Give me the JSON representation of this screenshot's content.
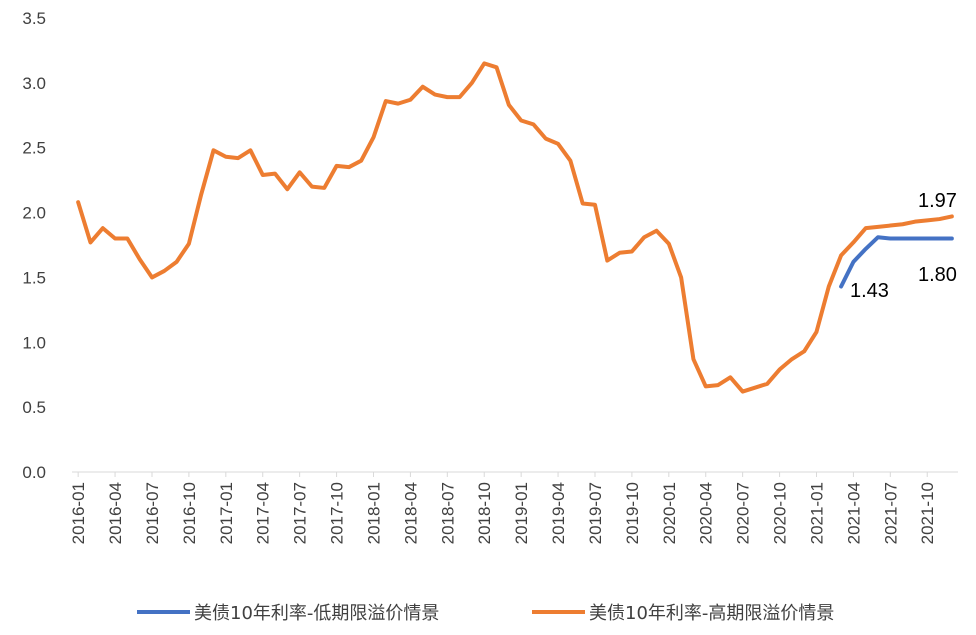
{
  "chart_data": {
    "type": "line",
    "title": "",
    "xlabel": "",
    "ylabel": "",
    "ylim": [
      0,
      3.5
    ],
    "yticks": [
      "0.0",
      "0.5",
      "1.0",
      "1.5",
      "2.0",
      "2.5",
      "3.0",
      "3.5"
    ],
    "grid": false,
    "legend_position": "bottom",
    "x": [
      "2016-01",
      "2016-02",
      "2016-03",
      "2016-04",
      "2016-05",
      "2016-06",
      "2016-07",
      "2016-08",
      "2016-09",
      "2016-10",
      "2016-11",
      "2016-12",
      "2017-01",
      "2017-02",
      "2017-03",
      "2017-04",
      "2017-05",
      "2017-06",
      "2017-07",
      "2017-08",
      "2017-09",
      "2017-10",
      "2017-11",
      "2017-12",
      "2018-01",
      "2018-02",
      "2018-03",
      "2018-04",
      "2018-05",
      "2018-06",
      "2018-07",
      "2018-08",
      "2018-09",
      "2018-10",
      "2018-11",
      "2018-12",
      "2019-01",
      "2019-02",
      "2019-03",
      "2019-04",
      "2019-05",
      "2019-06",
      "2019-07",
      "2019-08",
      "2019-09",
      "2019-10",
      "2019-11",
      "2019-12",
      "2020-01",
      "2020-02",
      "2020-03",
      "2020-04",
      "2020-05",
      "2020-06",
      "2020-07",
      "2020-08",
      "2020-09",
      "2020-10",
      "2020-11",
      "2020-12",
      "2021-01",
      "2021-02",
      "2021-03",
      "2021-04",
      "2021-05",
      "2021-06",
      "2021-07",
      "2021-08",
      "2021-09",
      "2021-10",
      "2021-11",
      "2021-12"
    ],
    "xtick_labels": [
      "2016-01",
      "2016-04",
      "2016-07",
      "2016-10",
      "2017-01",
      "2017-04",
      "2017-07",
      "2017-10",
      "2018-01",
      "2018-04",
      "2018-07",
      "2018-10",
      "2019-01",
      "2019-04",
      "2019-07",
      "2019-10",
      "2020-01",
      "2020-04",
      "2020-07",
      "2020-10",
      "2021-01",
      "2021-04",
      "2021-07",
      "2021-10"
    ],
    "series": [
      {
        "name": "美债10年利率-低期限溢价情景",
        "color": "#4472C4",
        "values": [
          null,
          null,
          null,
          null,
          null,
          null,
          null,
          null,
          null,
          null,
          null,
          null,
          null,
          null,
          null,
          null,
          null,
          null,
          null,
          null,
          null,
          null,
          null,
          null,
          null,
          null,
          null,
          null,
          null,
          null,
          null,
          null,
          null,
          null,
          null,
          null,
          null,
          null,
          null,
          null,
          null,
          null,
          null,
          null,
          null,
          null,
          null,
          null,
          null,
          null,
          null,
          null,
          null,
          null,
          null,
          null,
          null,
          null,
          null,
          null,
          null,
          null,
          1.43,
          1.62,
          1.72,
          1.81,
          1.8,
          1.8,
          1.8,
          1.8,
          1.8,
          1.8
        ]
      },
      {
        "name": "美债10年利率-高期限溢价情景",
        "color": "#ED7D31",
        "values": [
          2.08,
          1.77,
          1.88,
          1.8,
          1.8,
          1.64,
          1.5,
          1.55,
          1.62,
          1.76,
          2.14,
          2.48,
          2.43,
          2.42,
          2.48,
          2.29,
          2.3,
          2.18,
          2.31,
          2.2,
          2.19,
          2.36,
          2.35,
          2.4,
          2.58,
          2.86,
          2.84,
          2.87,
          2.97,
          2.91,
          2.89,
          2.89,
          3.0,
          3.15,
          3.12,
          2.83,
          2.71,
          2.68,
          2.57,
          2.53,
          2.4,
          2.07,
          2.06,
          1.63,
          1.69,
          1.7,
          1.81,
          1.86,
          1.76,
          1.5,
          0.87,
          0.66,
          0.67,
          0.73,
          0.62,
          0.65,
          0.68,
          0.79,
          0.87,
          0.93,
          1.08,
          1.43,
          1.67,
          1.77,
          1.88,
          1.89,
          1.9,
          1.91,
          1.93,
          1.94,
          1.95,
          1.97
        ]
      }
    ],
    "annotations": [
      "1.97",
      "1.80",
      "1.43"
    ]
  }
}
